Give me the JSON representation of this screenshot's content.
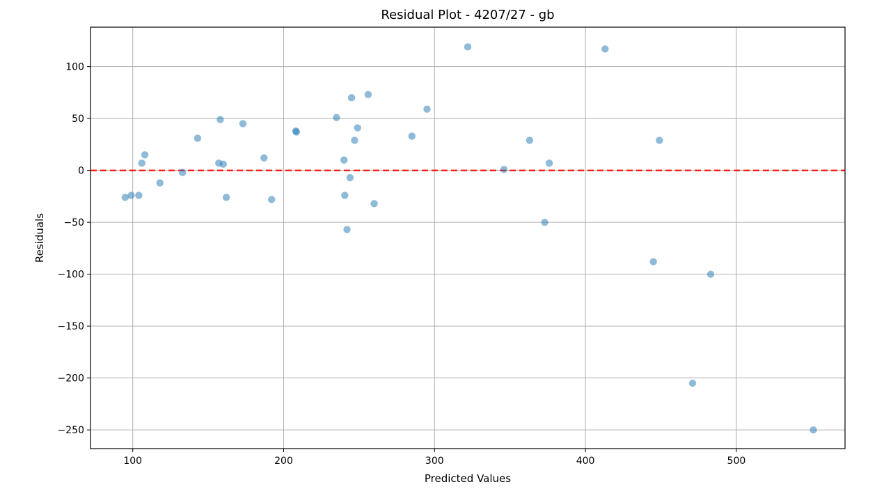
{
  "chart_data": {
    "type": "scatter",
    "title": "Residual Plot - 4207/27 - gb",
    "xlabel": "Predicted Values",
    "ylabel": "Residuals",
    "xlim": [
      72,
      572
    ],
    "ylim": [
      -268,
      138
    ],
    "xticks": [
      100,
      200,
      300,
      400,
      500
    ],
    "yticks": [
      100,
      50,
      0,
      -50,
      -100,
      -150,
      -200,
      -250
    ],
    "grid": true,
    "reference_line": {
      "y": 0,
      "style": "dashed",
      "color": "#ff0000"
    },
    "point_color": "#1f77b4",
    "point_alpha": 0.5,
    "points": [
      {
        "x": 95,
        "y": -26
      },
      {
        "x": 99,
        "y": -24
      },
      {
        "x": 104,
        "y": -24
      },
      {
        "x": 106,
        "y": 7
      },
      {
        "x": 108,
        "y": 15
      },
      {
        "x": 118,
        "y": -12
      },
      {
        "x": 133,
        "y": -2
      },
      {
        "x": 143,
        "y": 31
      },
      {
        "x": 157,
        "y": 7
      },
      {
        "x": 158,
        "y": 49
      },
      {
        "x": 160,
        "y": 6
      },
      {
        "x": 162,
        "y": -26
      },
      {
        "x": 173,
        "y": 45
      },
      {
        "x": 187,
        "y": 12
      },
      {
        "x": 192,
        "y": -28
      },
      {
        "x": 208,
        "y": 38
      },
      {
        "x": 208.5,
        "y": 37
      },
      {
        "x": 235,
        "y": 51
      },
      {
        "x": 240,
        "y": 10
      },
      {
        "x": 240.5,
        "y": -24
      },
      {
        "x": 242,
        "y": -57
      },
      {
        "x": 244,
        "y": -7
      },
      {
        "x": 245,
        "y": 70
      },
      {
        "x": 247,
        "y": 29
      },
      {
        "x": 249,
        "y": 41
      },
      {
        "x": 256,
        "y": 73
      },
      {
        "x": 260,
        "y": -32
      },
      {
        "x": 285,
        "y": 33
      },
      {
        "x": 295,
        "y": 59
      },
      {
        "x": 322,
        "y": 119
      },
      {
        "x": 346,
        "y": 1
      },
      {
        "x": 363,
        "y": 29
      },
      {
        "x": 373,
        "y": -50
      },
      {
        "x": 376,
        "y": 7
      },
      {
        "x": 413,
        "y": 117
      },
      {
        "x": 445,
        "y": -88
      },
      {
        "x": 449,
        "y": 29
      },
      {
        "x": 471,
        "y": -205
      },
      {
        "x": 483,
        "y": -100
      },
      {
        "x": 551,
        "y": -250
      }
    ]
  }
}
